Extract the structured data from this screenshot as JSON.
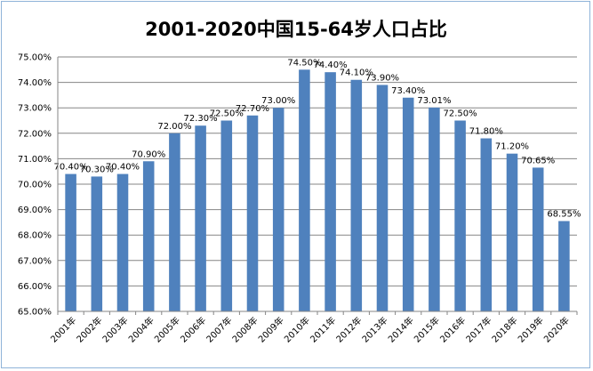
{
  "chart_data": {
    "type": "bar",
    "title": "2001-2020中国15-64岁人口占比",
    "categories": [
      "2001年",
      "2002年",
      "2003年",
      "2004年",
      "2005年",
      "2006年",
      "2007年",
      "2008年",
      "2009年",
      "2010年",
      "2011年",
      "2012年",
      "2013年",
      "2014年",
      "2015年",
      "2016年",
      "2017年",
      "2018年",
      "2019年",
      "2020年"
    ],
    "values": [
      70.4,
      70.3,
      70.4,
      70.9,
      72.0,
      72.3,
      72.5,
      72.7,
      73.0,
      74.5,
      74.4,
      74.1,
      73.9,
      73.4,
      73.01,
      72.5,
      71.8,
      71.2,
      70.65,
      68.55
    ],
    "data_labels": [
      "70.40%",
      "70.30%",
      "70.40%",
      "70.90%",
      "72.00%",
      "72.30%",
      "72.50%",
      "72.70%",
      "73.00%",
      "74.50%",
      "74.40%",
      "74.10%",
      "73.90%",
      "73.40%",
      "73.01%",
      "72.50%",
      "71.80%",
      "71.20%",
      "70.65%",
      "68.55%"
    ],
    "ylim": [
      65,
      75
    ],
    "y_ticks": [
      "65.00%",
      "66.00%",
      "67.00%",
      "68.00%",
      "69.00%",
      "70.00%",
      "71.00%",
      "72.00%",
      "73.00%",
      "74.00%",
      "75.00%"
    ],
    "grid": true,
    "bar_color": "#4f81bd",
    "legend": "none"
  }
}
